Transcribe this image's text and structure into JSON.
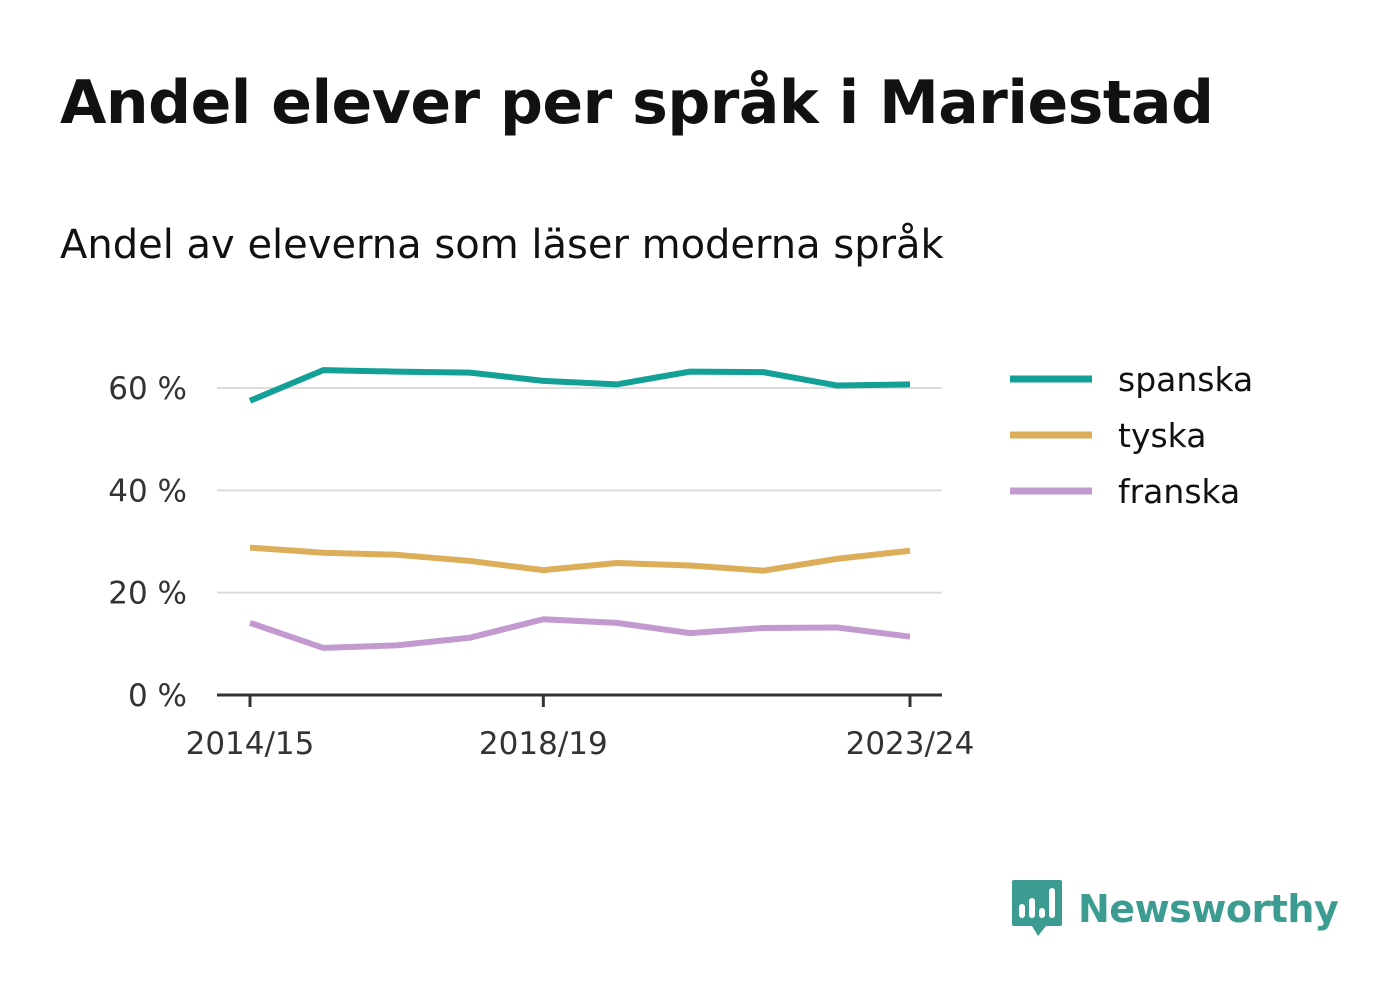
{
  "title": "Andel elever per språk i Mariestad",
  "subtitle": "Andel av eleverna som läser moderna språk",
  "brand": {
    "name": "Newsworthy",
    "color": "#3c9c91",
    "icon": "newsworthy-logo-icon"
  },
  "chart_data": {
    "type": "line",
    "x": [
      "2014/15",
      "2015/16",
      "2016/17",
      "2017/18",
      "2018/19",
      "2019/20",
      "2020/21",
      "2021/22",
      "2022/23",
      "2023/24"
    ],
    "x_tick_labels": [
      "2014/15",
      "2018/19",
      "2023/24"
    ],
    "y_ticks": [
      0,
      20,
      40,
      60
    ],
    "y_tick_labels": [
      "0 %",
      "20 %",
      "40 %",
      "60 %"
    ],
    "ylim": [
      0,
      68
    ],
    "grid": "horizontal",
    "legend_position": "right",
    "series": [
      {
        "name": "spanska",
        "color": "#13a097",
        "values": [
          57.5,
          63.5,
          63.2,
          63.0,
          61.4,
          60.7,
          63.2,
          63.1,
          60.5,
          60.7
        ]
      },
      {
        "name": "tyska",
        "color": "#dcae5a",
        "values": [
          28.8,
          27.8,
          27.4,
          26.2,
          24.4,
          25.8,
          25.3,
          24.3,
          26.6,
          28.2
        ]
      },
      {
        "name": "franska",
        "color": "#c29ad0",
        "values": [
          14.1,
          9.2,
          9.7,
          11.2,
          14.8,
          14.1,
          12.1,
          13.1,
          13.2,
          11.4
        ]
      }
    ]
  }
}
